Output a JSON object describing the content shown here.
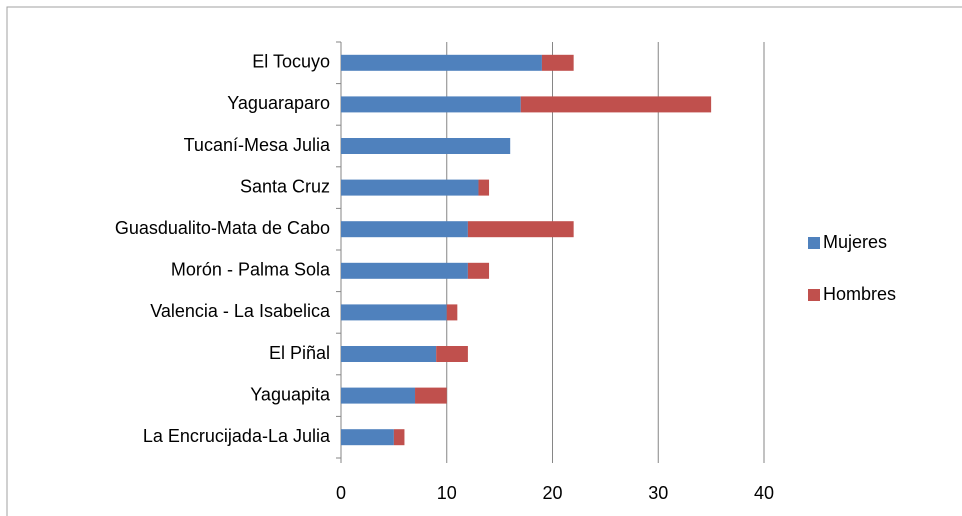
{
  "chart_data": {
    "type": "stacked-bar-horizontal",
    "categories": [
      "El Tocuyo",
      "Yaguaraparo",
      "Tucaní-Mesa Julia",
      "Santa Cruz",
      "Guasdualito-Mata de Cabo",
      "Morón - Palma Sola",
      "Valencia - La Isabelica",
      "El Piñal",
      "Yaguapita",
      "La Encrucijada-La Julia"
    ],
    "series": [
      {
        "name": "Mujeres",
        "color": "#4f81bd",
        "values": [
          19,
          17,
          16,
          13,
          12,
          12,
          10,
          9,
          7,
          5
        ]
      },
      {
        "name": "Hombres",
        "color": "#c0504d",
        "values": [
          3,
          18,
          0,
          1,
          10,
          2,
          1,
          3,
          3,
          1
        ]
      }
    ],
    "xlim": [
      0,
      40
    ],
    "xticks": [
      0,
      10,
      20,
      30,
      40
    ],
    "grid": true,
    "legend": "right"
  }
}
